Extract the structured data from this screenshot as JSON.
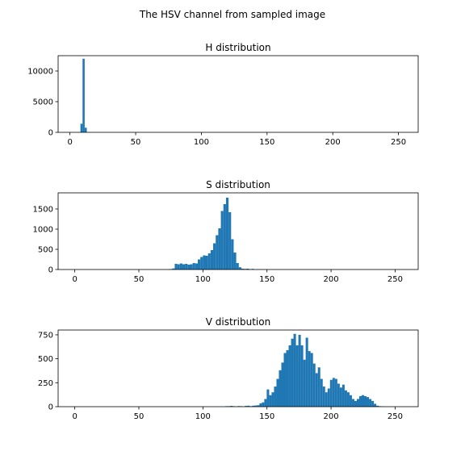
{
  "figure": {
    "suptitle": "The HSV channel from sampled image"
  },
  "style": {
    "bar_color": "#1f77b4",
    "axis_color": "#000000",
    "background": "#ffffff"
  },
  "chart_data": [
    {
      "type": "bar",
      "title": "H distribution",
      "xlabel": "",
      "ylabel": "",
      "xlim": [
        -9,
        265
      ],
      "ylim": [
        0,
        12500
      ],
      "xticks": [
        0,
        50,
        100,
        150,
        200,
        250
      ],
      "yticks": [
        0,
        5000,
        10000
      ],
      "grid": false,
      "legend": "none",
      "bin_width": 1.6,
      "bars": [
        {
          "x": 8.0,
          "y": 1400
        },
        {
          "x": 9.6,
          "y": 12000
        },
        {
          "x": 11.2,
          "y": 750
        }
      ]
    },
    {
      "type": "bar",
      "title": "S distribution",
      "xlabel": "",
      "ylabel": "",
      "xlim": [
        -13,
        268
      ],
      "ylim": [
        0,
        1900
      ],
      "xticks": [
        0,
        50,
        100,
        150,
        200,
        250
      ],
      "yticks": [
        0,
        500,
        1000,
        1500
      ],
      "grid": false,
      "legend": "none",
      "bin_width": 2,
      "bars": [
        {
          "x": 72,
          "y": 5
        },
        {
          "x": 74,
          "y": 10
        },
        {
          "x": 76,
          "y": 25
        },
        {
          "x": 78,
          "y": 140
        },
        {
          "x": 80,
          "y": 130
        },
        {
          "x": 82,
          "y": 150
        },
        {
          "x": 84,
          "y": 130
        },
        {
          "x": 86,
          "y": 140
        },
        {
          "x": 88,
          "y": 120
        },
        {
          "x": 90,
          "y": 130
        },
        {
          "x": 92,
          "y": 160
        },
        {
          "x": 94,
          "y": 150
        },
        {
          "x": 96,
          "y": 250
        },
        {
          "x": 98,
          "y": 310
        },
        {
          "x": 100,
          "y": 350
        },
        {
          "x": 102,
          "y": 340
        },
        {
          "x": 104,
          "y": 400
        },
        {
          "x": 106,
          "y": 480
        },
        {
          "x": 108,
          "y": 650
        },
        {
          "x": 110,
          "y": 850
        },
        {
          "x": 112,
          "y": 1020
        },
        {
          "x": 114,
          "y": 1450
        },
        {
          "x": 116,
          "y": 1620
        },
        {
          "x": 118,
          "y": 1780
        },
        {
          "x": 120,
          "y": 1420
        },
        {
          "x": 122,
          "y": 750
        },
        {
          "x": 124,
          "y": 420
        },
        {
          "x": 126,
          "y": 160
        },
        {
          "x": 128,
          "y": 55
        },
        {
          "x": 130,
          "y": 20
        },
        {
          "x": 132,
          "y": 15
        },
        {
          "x": 134,
          "y": 20
        },
        {
          "x": 136,
          "y": 10
        },
        {
          "x": 138,
          "y": 15
        },
        {
          "x": 142,
          "y": 10
        },
        {
          "x": 144,
          "y": 5
        },
        {
          "x": 146,
          "y": 3
        },
        {
          "x": 148,
          "y": 2
        }
      ]
    },
    {
      "type": "bar",
      "title": "V distribution",
      "xlabel": "",
      "ylabel": "",
      "xlim": [
        -13,
        268
      ],
      "ylim": [
        0,
        800
      ],
      "xticks": [
        0,
        50,
        100,
        150,
        200,
        250
      ],
      "yticks": [
        0,
        250,
        500,
        750
      ],
      "grid": false,
      "legend": "none",
      "bin_width": 1.9,
      "bars": [
        {
          "x": 117.5,
          "y": 5
        },
        {
          "x": 119.4,
          "y": 5
        },
        {
          "x": 121.3,
          "y": 8
        },
        {
          "x": 123.2,
          "y": 5
        },
        {
          "x": 127.0,
          "y": 6
        },
        {
          "x": 128.9,
          "y": 5
        },
        {
          "x": 132.7,
          "y": 8
        },
        {
          "x": 134.6,
          "y": 10
        },
        {
          "x": 136.5,
          "y": 5
        },
        {
          "x": 138.4,
          "y": 10
        },
        {
          "x": 140.3,
          "y": 12
        },
        {
          "x": 142.2,
          "y": 15
        },
        {
          "x": 144.1,
          "y": 35
        },
        {
          "x": 146.0,
          "y": 45
        },
        {
          "x": 147.9,
          "y": 80
        },
        {
          "x": 149.8,
          "y": 180
        },
        {
          "x": 151.7,
          "y": 120
        },
        {
          "x": 153.6,
          "y": 150
        },
        {
          "x": 155.5,
          "y": 210
        },
        {
          "x": 157.4,
          "y": 290
        },
        {
          "x": 159.3,
          "y": 380
        },
        {
          "x": 161.2,
          "y": 460
        },
        {
          "x": 163.1,
          "y": 560
        },
        {
          "x": 165.0,
          "y": 590
        },
        {
          "x": 166.9,
          "y": 640
        },
        {
          "x": 168.8,
          "y": 710
        },
        {
          "x": 170.7,
          "y": 760
        },
        {
          "x": 172.6,
          "y": 640
        },
        {
          "x": 174.5,
          "y": 750
        },
        {
          "x": 176.4,
          "y": 640
        },
        {
          "x": 178.3,
          "y": 490
        },
        {
          "x": 180.2,
          "y": 720
        },
        {
          "x": 182.1,
          "y": 580
        },
        {
          "x": 184.0,
          "y": 560
        },
        {
          "x": 185.9,
          "y": 450
        },
        {
          "x": 187.8,
          "y": 350
        },
        {
          "x": 189.7,
          "y": 410
        },
        {
          "x": 191.6,
          "y": 290
        },
        {
          "x": 193.5,
          "y": 210
        },
        {
          "x": 195.4,
          "y": 150
        },
        {
          "x": 197.3,
          "y": 190
        },
        {
          "x": 199.2,
          "y": 280
        },
        {
          "x": 201.1,
          "y": 300
        },
        {
          "x": 203.0,
          "y": 290
        },
        {
          "x": 204.9,
          "y": 240
        },
        {
          "x": 206.8,
          "y": 200
        },
        {
          "x": 208.7,
          "y": 230
        },
        {
          "x": 210.6,
          "y": 170
        },
        {
          "x": 212.5,
          "y": 150
        },
        {
          "x": 214.4,
          "y": 120
        },
        {
          "x": 216.3,
          "y": 80
        },
        {
          "x": 218.2,
          "y": 60
        },
        {
          "x": 220.1,
          "y": 80
        },
        {
          "x": 222.0,
          "y": 110
        },
        {
          "x": 223.9,
          "y": 120
        },
        {
          "x": 225.8,
          "y": 110
        },
        {
          "x": 227.7,
          "y": 100
        },
        {
          "x": 229.6,
          "y": 80
        },
        {
          "x": 231.5,
          "y": 60
        },
        {
          "x": 233.4,
          "y": 30
        },
        {
          "x": 235.3,
          "y": 10
        },
        {
          "x": 237.2,
          "y": 5
        },
        {
          "x": 239.1,
          "y": 3
        }
      ]
    }
  ]
}
